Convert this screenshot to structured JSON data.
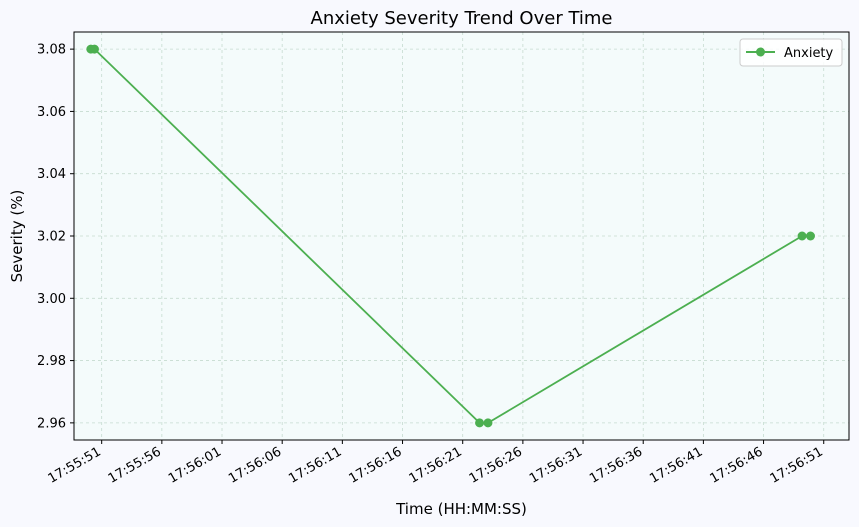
{
  "chart_data": {
    "type": "line",
    "title": "Anxiety Severity Trend Over Time",
    "xlabel": "Time (HH:MM:SS)",
    "ylabel": "Severity (%)",
    "x_ticks": [
      "17:55:51",
      "17:55:56",
      "17:56:01",
      "17:56:06",
      "17:56:11",
      "17:56:16",
      "17:56:21",
      "17:56:26",
      "17:56:31",
      "17:56:36",
      "17:56:41",
      "17:56:46",
      "17:56:51"
    ],
    "y_ticks": [
      "2.96",
      "2.98",
      "3.00",
      "3.02",
      "3.04",
      "3.06",
      "3.08"
    ],
    "xlim": [
      "17:55:48.7",
      "17:56:53.1"
    ],
    "ylim": [
      2.9545,
      3.0855
    ],
    "grid": true,
    "legend_position": "top-right",
    "series": [
      {
        "name": "Anxiety",
        "color": "#4caf50",
        "marker": "circle",
        "x": [
          "17:55:50.1",
          "17:55:50.4",
          "17:56:22.4",
          "17:56:23.1",
          "17:56:49.2",
          "17:56:49.9"
        ],
        "y": [
          3.08,
          3.08,
          2.96,
          2.96,
          3.02,
          3.02
        ]
      }
    ]
  }
}
